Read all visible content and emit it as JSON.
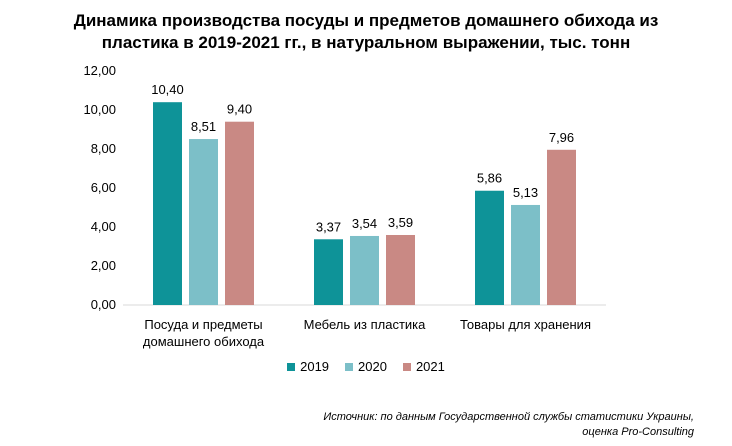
{
  "chart_data": {
    "type": "bar",
    "title_line1": "Динамика производства посуды и предметов домашнего обихода из",
    "title_line2": "пластика в 2019-2021 гг., в натуральном выражении, тыс. тонн",
    "categories": [
      [
        "Посуда и предметы",
        "домашнего обихода"
      ],
      [
        "Мебель из пластика"
      ],
      [
        "Товары для хранения"
      ]
    ],
    "series": [
      {
        "name": "2019",
        "color": "#0e9398",
        "values": [
          10.4,
          3.37,
          5.86
        ],
        "labels": [
          "10,40",
          "3,37",
          "5,86"
        ]
      },
      {
        "name": "2020",
        "color": "#7cbfc8",
        "values": [
          8.51,
          3.54,
          5.13
        ],
        "labels": [
          "8,51",
          "3,54",
          "5,13"
        ]
      },
      {
        "name": "2021",
        "color": "#c98984",
        "values": [
          9.4,
          3.59,
          7.96
        ],
        "labels": [
          "9,40",
          "3,59",
          "7,96"
        ]
      }
    ],
    "ylim": [
      0,
      12
    ],
    "yticks": [
      0,
      2,
      4,
      6,
      8,
      10,
      12
    ],
    "ytick_labels": [
      "0,00",
      "2,00",
      "4,00",
      "6,00",
      "8,00",
      "10,00",
      "12,00"
    ],
    "grid": false,
    "legend_position": "bottom"
  },
  "source_line1": "Источник: по данным Государственной службы статистики Украины,",
  "source_line2": "оценка Pro-Consulting"
}
